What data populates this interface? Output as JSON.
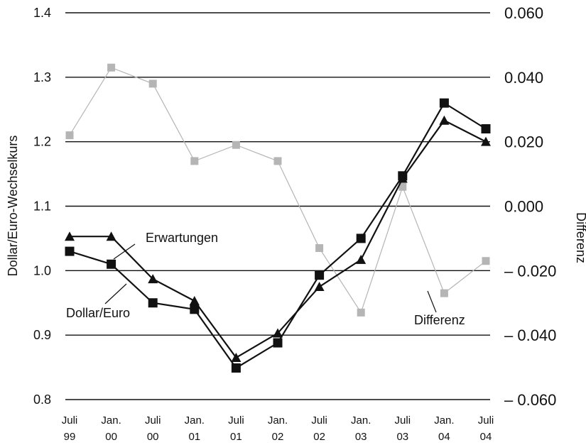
{
  "chart_data": {
    "type": "line",
    "xlabel": "",
    "ylabel": "Dollar/Euro-Wechselkurs",
    "y2label": "Differenz",
    "ylim": [
      0.8,
      1.4
    ],
    "y2lim": [
      -0.06,
      0.06
    ],
    "yticks": [
      "1.4",
      "1.3",
      "1.2",
      "1.1",
      "1.0",
      "0.9",
      "0.8"
    ],
    "y2ticks": [
      "0.060",
      "0.040",
      "0.020",
      "0.000",
      "– 0.020",
      "– 0.040",
      "– 0.060"
    ],
    "categories": [
      [
        "Juli",
        "99"
      ],
      [
        "Jan.",
        "00"
      ],
      [
        "Juli",
        "00"
      ],
      [
        "Jan.",
        "01"
      ],
      [
        "Juli",
        "01"
      ],
      [
        "Jan.",
        "02"
      ],
      [
        "Juli",
        "02"
      ],
      [
        "Jan.",
        "03"
      ],
      [
        "Juli",
        "03"
      ],
      [
        "Jan.",
        "04"
      ],
      [
        "Juli",
        "04"
      ]
    ],
    "grid": "horizontal",
    "series": [
      {
        "name": "Erwartungen",
        "axis": "left",
        "marker": "triangle",
        "color": "#111111",
        "values": [
          1.053,
          1.053,
          0.987,
          0.953,
          0.865,
          0.903,
          0.975,
          1.017,
          1.143,
          1.233,
          1.2
        ]
      },
      {
        "name": "Dollar/Euro",
        "axis": "left",
        "marker": "square",
        "color": "#111111",
        "values": [
          1.03,
          1.01,
          0.95,
          0.94,
          0.849,
          0.888,
          0.993,
          1.05,
          1.147,
          1.26,
          1.22
        ]
      },
      {
        "name": "Differenz",
        "axis": "right",
        "marker": "square",
        "color": "#b5b5b5",
        "values": [
          0.022,
          0.043,
          0.038,
          0.014,
          0.019,
          0.014,
          -0.013,
          -0.033,
          0.006,
          -0.027,
          -0.017
        ]
      }
    ],
    "annotations": [
      "Erwartungen",
      "Dollar/Euro",
      "Differenz"
    ]
  }
}
